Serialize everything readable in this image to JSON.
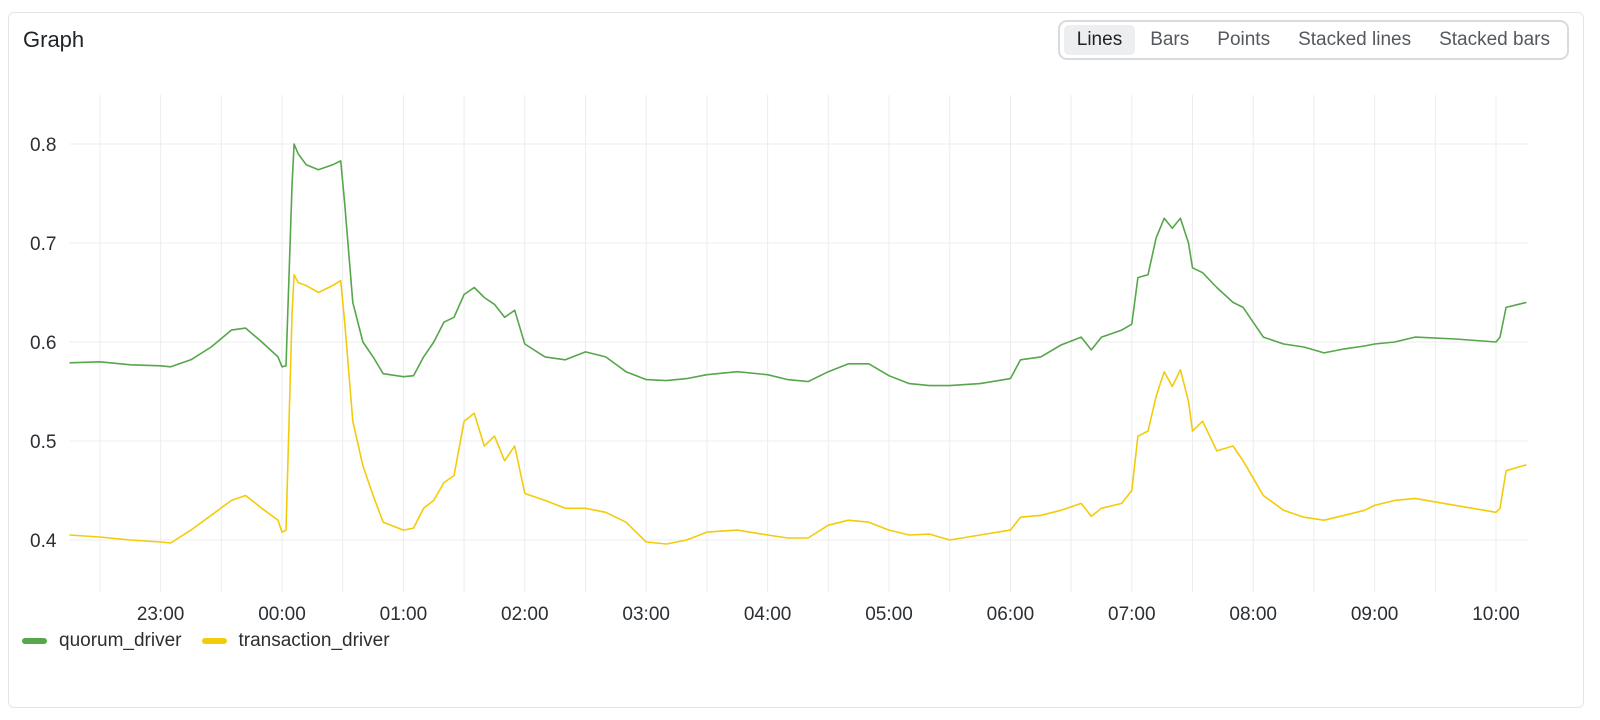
{
  "panel": {
    "title": "Graph",
    "modes": [
      "Lines",
      "Bars",
      "Points",
      "Stacked lines",
      "Stacked bars"
    ],
    "active_mode": "Lines"
  },
  "chart_data": {
    "type": "line",
    "title": "",
    "xlabel": "",
    "ylabel": "",
    "x_unit": "time (hours after midnight)",
    "xlim": [
      "22:15",
      "10:15"
    ],
    "ylim": [
      0.35,
      0.85
    ],
    "x_ticks": [
      "23:00",
      "00:00",
      "01:00",
      "02:00",
      "03:00",
      "04:00",
      "05:00",
      "06:00",
      "07:00",
      "08:00",
      "09:00",
      "10:00"
    ],
    "y_ticks": [
      "0.4",
      "0.5",
      "0.6",
      "0.7",
      "0.8"
    ],
    "grid": true,
    "legend_position": "bottom-left",
    "series": [
      {
        "name": "quorum_driver",
        "color": "#56a64b",
        "points": [
          [
            "22:15",
            0.579
          ],
          [
            "22:30",
            0.58
          ],
          [
            "22:45",
            0.577
          ],
          [
            "23:00",
            0.576
          ],
          [
            "23:05",
            0.575
          ],
          [
            "23:15",
            0.582
          ],
          [
            "23:25",
            0.595
          ],
          [
            "23:35",
            0.612
          ],
          [
            "23:42",
            0.614
          ],
          [
            "23:50",
            0.6
          ],
          [
            "23:58",
            0.585
          ],
          [
            "00:00",
            0.575
          ],
          [
            "00:02",
            0.576
          ],
          [
            "00:05",
            0.76
          ],
          [
            "00:06",
            0.8
          ],
          [
            "00:08",
            0.79
          ],
          [
            "00:12",
            0.779
          ],
          [
            "00:18",
            0.774
          ],
          [
            "00:25",
            0.779
          ],
          [
            "00:29",
            0.783
          ],
          [
            "00:31",
            0.74
          ],
          [
            "00:35",
            0.64
          ],
          [
            "00:40",
            0.6
          ],
          [
            "00:45",
            0.585
          ],
          [
            "00:50",
            0.568
          ],
          [
            "01:00",
            0.565
          ],
          [
            "01:05",
            0.566
          ],
          [
            "01:10",
            0.585
          ],
          [
            "01:15",
            0.6
          ],
          [
            "01:20",
            0.62
          ],
          [
            "01:25",
            0.625
          ],
          [
            "01:30",
            0.648
          ],
          [
            "01:35",
            0.655
          ],
          [
            "01:40",
            0.645
          ],
          [
            "01:45",
            0.638
          ],
          [
            "01:50",
            0.625
          ],
          [
            "01:55",
            0.632
          ],
          [
            "02:00",
            0.598
          ],
          [
            "02:10",
            0.585
          ],
          [
            "02:20",
            0.582
          ],
          [
            "02:30",
            0.59
          ],
          [
            "02:40",
            0.585
          ],
          [
            "02:50",
            0.57
          ],
          [
            "03:00",
            0.562
          ],
          [
            "03:10",
            0.561
          ],
          [
            "03:20",
            0.563
          ],
          [
            "03:30",
            0.567
          ],
          [
            "03:45",
            0.57
          ],
          [
            "04:00",
            0.567
          ],
          [
            "04:10",
            0.562
          ],
          [
            "04:20",
            0.56
          ],
          [
            "04:30",
            0.57
          ],
          [
            "04:40",
            0.578
          ],
          [
            "04:50",
            0.578
          ],
          [
            "05:00",
            0.566
          ],
          [
            "05:10",
            0.558
          ],
          [
            "05:20",
            0.556
          ],
          [
            "05:30",
            0.556
          ],
          [
            "05:45",
            0.558
          ],
          [
            "06:00",
            0.563
          ],
          [
            "06:05",
            0.582
          ],
          [
            "06:15",
            0.585
          ],
          [
            "06:25",
            0.597
          ],
          [
            "06:35",
            0.605
          ],
          [
            "06:40",
            0.592
          ],
          [
            "06:45",
            0.605
          ],
          [
            "06:55",
            0.612
          ],
          [
            "07:00",
            0.618
          ],
          [
            "07:03",
            0.665
          ],
          [
            "07:08",
            0.668
          ],
          [
            "07:12",
            0.705
          ],
          [
            "07:16",
            0.725
          ],
          [
            "07:20",
            0.715
          ],
          [
            "07:24",
            0.725
          ],
          [
            "07:28",
            0.7
          ],
          [
            "07:30",
            0.675
          ],
          [
            "07:35",
            0.67
          ],
          [
            "07:42",
            0.655
          ],
          [
            "07:50",
            0.64
          ],
          [
            "07:55",
            0.635
          ],
          [
            "08:05",
            0.605
          ],
          [
            "08:15",
            0.598
          ],
          [
            "08:25",
            0.595
          ],
          [
            "08:35",
            0.589
          ],
          [
            "08:45",
            0.593
          ],
          [
            "08:55",
            0.596
          ],
          [
            "09:00",
            0.598
          ],
          [
            "09:10",
            0.6
          ],
          [
            "09:20",
            0.605
          ],
          [
            "09:40",
            0.603
          ],
          [
            "10:00",
            0.6
          ],
          [
            "10:02",
            0.605
          ],
          [
            "10:05",
            0.635
          ],
          [
            "10:15",
            0.64
          ]
        ]
      },
      {
        "name": "transaction_driver",
        "color": "#f2cc0c",
        "points": [
          [
            "22:15",
            0.405
          ],
          [
            "22:30",
            0.403
          ],
          [
            "22:45",
            0.4
          ],
          [
            "23:00",
            0.398
          ],
          [
            "23:05",
            0.397
          ],
          [
            "23:15",
            0.41
          ],
          [
            "23:25",
            0.425
          ],
          [
            "23:35",
            0.44
          ],
          [
            "23:42",
            0.445
          ],
          [
            "23:50",
            0.432
          ],
          [
            "23:58",
            0.42
          ],
          [
            "00:00",
            0.408
          ],
          [
            "00:02",
            0.41
          ],
          [
            "00:05",
            0.63
          ],
          [
            "00:06",
            0.668
          ],
          [
            "00:08",
            0.66
          ],
          [
            "00:12",
            0.657
          ],
          [
            "00:18",
            0.65
          ],
          [
            "00:25",
            0.657
          ],
          [
            "00:29",
            0.662
          ],
          [
            "00:31",
            0.62
          ],
          [
            "00:35",
            0.52
          ],
          [
            "00:40",
            0.475
          ],
          [
            "00:45",
            0.445
          ],
          [
            "00:50",
            0.418
          ],
          [
            "01:00",
            0.41
          ],
          [
            "01:05",
            0.412
          ],
          [
            "01:10",
            0.432
          ],
          [
            "01:15",
            0.44
          ],
          [
            "01:20",
            0.458
          ],
          [
            "01:25",
            0.465
          ],
          [
            "01:30",
            0.52
          ],
          [
            "01:35",
            0.528
          ],
          [
            "01:40",
            0.495
          ],
          [
            "01:45",
            0.505
          ],
          [
            "01:50",
            0.48
          ],
          [
            "01:55",
            0.495
          ],
          [
            "02:00",
            0.447
          ],
          [
            "02:10",
            0.44
          ],
          [
            "02:20",
            0.432
          ],
          [
            "02:30",
            0.432
          ],
          [
            "02:40",
            0.428
          ],
          [
            "02:50",
            0.418
          ],
          [
            "03:00",
            0.398
          ],
          [
            "03:10",
            0.396
          ],
          [
            "03:20",
            0.4
          ],
          [
            "03:30",
            0.408
          ],
          [
            "03:45",
            0.41
          ],
          [
            "04:00",
            0.405
          ],
          [
            "04:10",
            0.402
          ],
          [
            "04:20",
            0.402
          ],
          [
            "04:30",
            0.415
          ],
          [
            "04:40",
            0.42
          ],
          [
            "04:50",
            0.418
          ],
          [
            "05:00",
            0.41
          ],
          [
            "05:10",
            0.405
          ],
          [
            "05:20",
            0.406
          ],
          [
            "05:30",
            0.4
          ],
          [
            "05:45",
            0.405
          ],
          [
            "06:00",
            0.41
          ],
          [
            "06:05",
            0.423
          ],
          [
            "06:15",
            0.425
          ],
          [
            "06:25",
            0.43
          ],
          [
            "06:35",
            0.437
          ],
          [
            "06:40",
            0.424
          ],
          [
            "06:45",
            0.432
          ],
          [
            "06:55",
            0.437
          ],
          [
            "07:00",
            0.45
          ],
          [
            "07:03",
            0.505
          ],
          [
            "07:08",
            0.51
          ],
          [
            "07:12",
            0.545
          ],
          [
            "07:16",
            0.57
          ],
          [
            "07:20",
            0.555
          ],
          [
            "07:24",
            0.572
          ],
          [
            "07:28",
            0.54
          ],
          [
            "07:30",
            0.51
          ],
          [
            "07:35",
            0.52
          ],
          [
            "07:42",
            0.49
          ],
          [
            "07:50",
            0.495
          ],
          [
            "07:55",
            0.48
          ],
          [
            "08:05",
            0.445
          ],
          [
            "08:15",
            0.43
          ],
          [
            "08:25",
            0.423
          ],
          [
            "08:35",
            0.42
          ],
          [
            "08:45",
            0.425
          ],
          [
            "08:55",
            0.43
          ],
          [
            "09:00",
            0.435
          ],
          [
            "09:10",
            0.44
          ],
          [
            "09:20",
            0.442
          ],
          [
            "09:40",
            0.435
          ],
          [
            "10:00",
            0.428
          ],
          [
            "10:02",
            0.432
          ],
          [
            "10:05",
            0.47
          ],
          [
            "10:15",
            0.476
          ]
        ]
      }
    ]
  }
}
